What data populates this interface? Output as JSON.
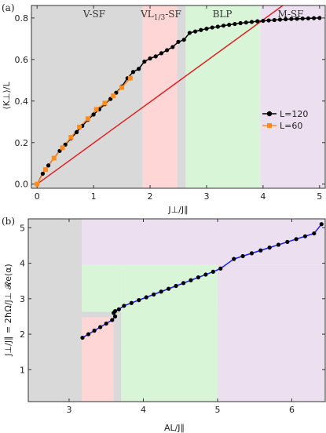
{
  "chart_data": [
    {
      "type": "line",
      "panel_label": "(a)",
      "xlabel": "J⊥/J∥",
      "ylabel": "⟨K⊥⟩/L",
      "xlim": [
        -0.1,
        5.1
      ],
      "ylim": [
        -0.02,
        0.86
      ],
      "xticks": [
        0,
        1,
        2,
        3,
        4,
        5
      ],
      "yticks": [
        0.0,
        0.2,
        0.4,
        0.6,
        0.8
      ],
      "ytick_labels": [
        "0.0",
        "0.2",
        "0.4",
        "0.6",
        "0.8"
      ],
      "regions": [
        {
          "label": "V-SF",
          "x0": -0.1,
          "x1": 1.87,
          "color": "#d9d9d9"
        },
        {
          "label": "VL1/3-SF",
          "x0": 1.87,
          "x1": 2.48,
          "color": "#ffd6d6"
        },
        {
          "label": "",
          "x0": 2.48,
          "x1": 2.63,
          "color": "#d9d9d9"
        },
        {
          "label": "BLP",
          "x0": 2.63,
          "x1": 3.95,
          "color": "#d8f5d8"
        },
        {
          "label": "M-SF",
          "x0": 3.95,
          "x1": 5.1,
          "color": "#ece0f0"
        }
      ],
      "region_label_parts": {
        "vl_main": "VL",
        "vl_sub": "1/3",
        "vl_tail": "-SF"
      },
      "region_label_y": 0.825,
      "red_line": {
        "x": [
          0,
          4.35
        ],
        "y": [
          0,
          0.86
        ],
        "color": "#e02020"
      },
      "series": [
        {
          "name": "L=120",
          "color": "#000000",
          "marker": "circle",
          "x": [
            0,
            0.1,
            0.2,
            0.3,
            0.4,
            0.5,
            0.6,
            0.7,
            0.8,
            0.9,
            1.0,
            1.1,
            1.2,
            1.3,
            1.4,
            1.5,
            1.6,
            1.7,
            1.8,
            1.9,
            2.0,
            2.1,
            2.2,
            2.3,
            2.4,
            2.5,
            2.6,
            2.7,
            2.8,
            2.9,
            3.0,
            3.1,
            3.2,
            3.3,
            3.4,
            3.5,
            3.6,
            3.7,
            3.8,
            3.9,
            4.0,
            4.1,
            4.2,
            4.3,
            4.4,
            4.5,
            4.6,
            4.7,
            4.8,
            4.9,
            5.0
          ],
          "y": [
            0.0,
            0.05,
            0.09,
            0.125,
            0.16,
            0.19,
            0.22,
            0.25,
            0.28,
            0.31,
            0.335,
            0.36,
            0.385,
            0.41,
            0.44,
            0.47,
            0.51,
            0.54,
            0.555,
            0.59,
            0.605,
            0.615,
            0.63,
            0.645,
            0.66,
            0.685,
            0.695,
            0.728,
            0.735,
            0.742,
            0.748,
            0.754,
            0.758,
            0.763,
            0.767,
            0.771,
            0.775,
            0.778,
            0.781,
            0.784,
            0.786,
            0.788,
            0.79,
            0.792,
            0.794,
            0.795,
            0.796,
            0.797,
            0.798,
            0.799,
            0.8
          ]
        },
        {
          "name": "L=60",
          "color": "#ff8c1a",
          "marker": "square",
          "x": [
            0,
            0.15,
            0.3,
            0.45,
            0.6,
            0.75,
            0.9,
            1.05,
            1.2,
            1.35,
            1.5,
            1.65
          ],
          "y": [
            0.0,
            0.07,
            0.125,
            0.175,
            0.225,
            0.275,
            0.315,
            0.36,
            0.39,
            0.425,
            0.465,
            0.51
          ]
        }
      ],
      "legend_position": "right"
    },
    {
      "type": "line",
      "panel_label": "(b)",
      "xlabel": "AL/J∥",
      "ylabel": "J⊥/J∥ = 2ħΩ/J⊥ 𝓡e(α)",
      "xlim": [
        2.45,
        6.45
      ],
      "ylim": [
        0.1,
        5.25
      ],
      "xticks": [
        3,
        4,
        5,
        6
      ],
      "yticks": [
        1,
        2,
        3,
        4,
        5
      ],
      "regions": [
        {
          "x0": 2.45,
          "x1": 3.17,
          "y0": 0.1,
          "y1": 5.25,
          "color": "#d9d9d9"
        },
        {
          "x0": 3.17,
          "x1": 6.45,
          "y0": 3.95,
          "y1": 5.25,
          "color": "#ece0f0"
        },
        {
          "x0": 5.0,
          "x1": 6.45,
          "y0": 0.1,
          "y1": 3.95,
          "color": "#ece0f0"
        },
        {
          "x0": 3.17,
          "x1": 5.0,
          "y0": 0.1,
          "y1": 2.63,
          "color": "#ece0f0"
        },
        {
          "x0": 3.7,
          "x1": 5.0,
          "y0": 0.1,
          "y1": 3.95,
          "color": "#d8f5d8"
        },
        {
          "x0": 3.17,
          "x1": 3.7,
          "y0": 2.63,
          "y1": 3.95,
          "color": "#d8f5d8"
        },
        {
          "x0": 3.17,
          "x1": 3.6,
          "y0": 0.1,
          "y1": 2.48,
          "color": "#ffd6d6"
        },
        {
          "x0": 3.17,
          "x1": 3.7,
          "y0": 2.48,
          "y1": 2.63,
          "color": "#d9d9d9"
        },
        {
          "x0": 3.6,
          "x1": 3.7,
          "y0": 0.1,
          "y1": 2.63,
          "color": "#d9d9d9"
        }
      ],
      "series": [
        {
          "name": "",
          "color": "#1a1aff",
          "marker": "circle",
          "marker_color": "#000000",
          "x": [
            3.18,
            3.26,
            3.34,
            3.42,
            3.5,
            3.58,
            3.62,
            3.6,
            3.62,
            3.67,
            3.74,
            3.84,
            3.94,
            4.04,
            4.14,
            4.24,
            4.34,
            4.44,
            4.54,
            4.64,
            4.74,
            4.84,
            4.94,
            5.04,
            5.22,
            5.34,
            5.46,
            5.58,
            5.7,
            5.82,
            5.94,
            6.06,
            6.18,
            6.3,
            6.4
          ],
          "y": [
            1.9,
            2.0,
            2.1,
            2.2,
            2.3,
            2.4,
            2.5,
            2.6,
            2.65,
            2.7,
            2.8,
            2.88,
            2.96,
            3.04,
            3.12,
            3.2,
            3.28,
            3.36,
            3.44,
            3.52,
            3.6,
            3.68,
            3.76,
            3.85,
            4.12,
            4.2,
            4.28,
            4.36,
            4.44,
            4.52,
            4.6,
            4.68,
            4.76,
            4.84,
            5.1
          ]
        }
      ]
    }
  ]
}
